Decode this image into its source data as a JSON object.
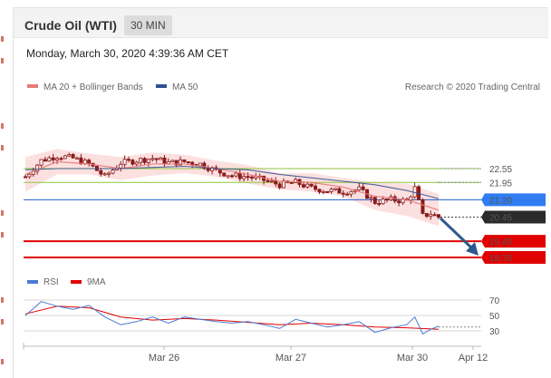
{
  "header": {
    "title": "Crude Oil (WTI)",
    "timeframe": "30 MIN",
    "datetime": "Monday, March 30, 2020 4:39:36 AM CET"
  },
  "colors": {
    "ma20": "#e87a7a",
    "bands": "#fbdada",
    "ma50": "#2d4f8e",
    "candle": "#8b1a1a",
    "resistance": "#8cc63f",
    "resistance_text": "#5a9a1a",
    "pivot": "#1f5fc9",
    "pivot_tag": "#2f7df0",
    "price_tag": "#2b2b2b",
    "support": "#e00000",
    "rsi": "#4a7bd0",
    "rsi_ma": "#e00000",
    "arrow": "#2d5a8c"
  },
  "legend": {
    "ma20_label": "MA 20 + Bollinger Bands",
    "ma50_label": "MA 50",
    "credit": "Research © 2020 Trading Central"
  },
  "chart_data": [
    {
      "type": "candlestick",
      "y_scale": {
        "ticks": [
          22.55,
          21.95,
          21.2,
          20.45,
          19.4,
          18.7
        ]
      },
      "x_labels": [
        "Mar 26",
        "Mar 27",
        "Mar 30",
        "Apr 12"
      ],
      "levels": [
        {
          "value": 22.55,
          "label": "22.55",
          "kind": "resistance"
        },
        {
          "value": 21.95,
          "label": "21.95",
          "kind": "resistance"
        },
        {
          "value": 21.2,
          "label": "21.20",
          "kind": "pivot"
        },
        {
          "value": 20.45,
          "label": "20.45",
          "kind": "last-price"
        },
        {
          "value": 19.4,
          "label": "19.40",
          "kind": "support"
        },
        {
          "value": 18.7,
          "label": "18.70",
          "kind": "support"
        }
      ],
      "series": [
        {
          "name": "MA 20 + Bollinger Bands"
        },
        {
          "name": "MA 50"
        }
      ],
      "price_path": [
        [
          0,
          22.2
        ],
        [
          4,
          22.9
        ],
        [
          8,
          23.1
        ],
        [
          12,
          23.0
        ],
        [
          16,
          22.75
        ],
        [
          20,
          22.2
        ],
        [
          24,
          22.8
        ],
        [
          28,
          22.9
        ],
        [
          32,
          23.0
        ],
        [
          36,
          22.8
        ],
        [
          40,
          22.85
        ],
        [
          44,
          22.75
        ],
        [
          48,
          22.45
        ],
        [
          52,
          22.25
        ],
        [
          56,
          22.2
        ],
        [
          60,
          22.05
        ],
        [
          64,
          21.85
        ],
        [
          68,
          21.95
        ],
        [
          72,
          21.7
        ],
        [
          76,
          21.6
        ],
        [
          80,
          21.55
        ],
        [
          84,
          21.65
        ],
        [
          88,
          21.1
        ],
        [
          92,
          21.2
        ],
        [
          96,
          21.15
        ],
        [
          98,
          21.7
        ],
        [
          100,
          20.5
        ],
        [
          102,
          20.6
        ],
        [
          104,
          20.45
        ]
      ],
      "ma20": [
        [
          0,
          22.3
        ],
        [
          8,
          22.85
        ],
        [
          16,
          22.75
        ],
        [
          24,
          22.55
        ],
        [
          32,
          22.75
        ],
        [
          40,
          22.75
        ],
        [
          48,
          22.55
        ],
        [
          56,
          22.3
        ],
        [
          64,
          22.0
        ],
        [
          72,
          21.95
        ],
        [
          80,
          21.75
        ],
        [
          88,
          21.35
        ],
        [
          96,
          21.2
        ],
        [
          104,
          20.75
        ]
      ],
      "ma50": [
        [
          0,
          22.5
        ],
        [
          8,
          22.55
        ],
        [
          16,
          22.55
        ],
        [
          24,
          22.55
        ],
        [
          32,
          22.6
        ],
        [
          40,
          22.65
        ],
        [
          48,
          22.55
        ],
        [
          56,
          22.5
        ],
        [
          64,
          22.3
        ],
        [
          72,
          22.15
        ],
        [
          80,
          22.0
        ],
        [
          88,
          21.85
        ],
        [
          96,
          21.6
        ],
        [
          104,
          21.25
        ]
      ],
      "band_width": [
        [
          0,
          0.75
        ],
        [
          8,
          0.55
        ],
        [
          16,
          0.45
        ],
        [
          24,
          0.5
        ],
        [
          32,
          0.5
        ],
        [
          40,
          0.4
        ],
        [
          48,
          0.35
        ],
        [
          56,
          0.4
        ],
        [
          64,
          0.35
        ],
        [
          72,
          0.4
        ],
        [
          80,
          0.4
        ],
        [
          88,
          0.6
        ],
        [
          96,
          0.7
        ],
        [
          104,
          0.7
        ]
      ],
      "forecast_arrow": {
        "from": [
          104,
          20.4
        ],
        "to": [
          120,
          18.7
        ]
      }
    },
    {
      "type": "line",
      "y_scale": {
        "ticks": [
          70,
          50,
          30
        ]
      },
      "x_labels": [
        "Mar 26",
        "Mar 27",
        "Mar 30",
        "Apr 12"
      ],
      "series": [
        {
          "name": "RSI",
          "values": [
            [
              0,
              50
            ],
            [
              4,
              68
            ],
            [
              8,
              62
            ],
            [
              12,
              58
            ],
            [
              16,
              63
            ],
            [
              20,
              48
            ],
            [
              24,
              38
            ],
            [
              28,
              42
            ],
            [
              32,
              48
            ],
            [
              36,
              40
            ],
            [
              40,
              48
            ],
            [
              44,
              45
            ],
            [
              48,
              42
            ],
            [
              52,
              40
            ],
            [
              56,
              42
            ],
            [
              60,
              38
            ],
            [
              64,
              33
            ],
            [
              68,
              45
            ],
            [
              72,
              40
            ],
            [
              76,
              35
            ],
            [
              80,
              38
            ],
            [
              84,
              42
            ],
            [
              88,
              28
            ],
            [
              92,
              34
            ],
            [
              96,
              38
            ],
            [
              98,
              48
            ],
            [
              100,
              26
            ],
            [
              102,
              32
            ],
            [
              104,
              36
            ]
          ]
        },
        {
          "name": "9MA",
          "values": [
            [
              0,
              52
            ],
            [
              8,
              62
            ],
            [
              16,
              60
            ],
            [
              24,
              48
            ],
            [
              32,
              44
            ],
            [
              40,
              46
            ],
            [
              48,
              44
            ],
            [
              56,
              41
            ],
            [
              64,
              38
            ],
            [
              72,
              40
            ],
            [
              80,
              38
            ],
            [
              88,
              35
            ],
            [
              96,
              34
            ],
            [
              104,
              32
            ]
          ]
        }
      ],
      "guides": [
        70,
        50,
        30
      ]
    }
  ]
}
